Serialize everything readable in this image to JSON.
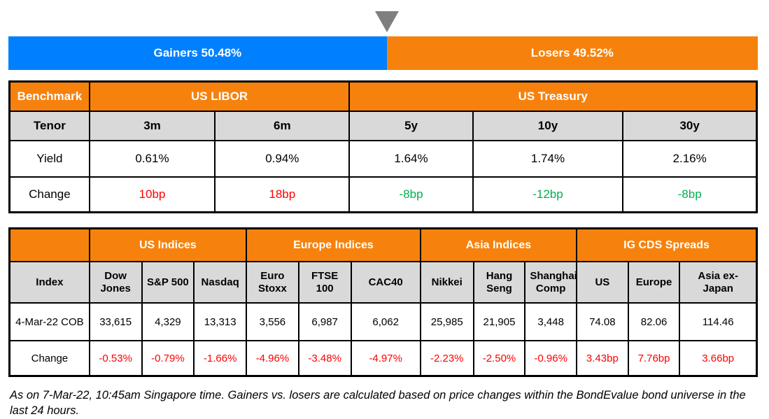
{
  "gauge": {
    "gainers": {
      "label": "Gainers 50.48%",
      "pct": 50.48,
      "color": "#0080fe"
    },
    "losers": {
      "label": "Losers 49.52%",
      "pct": 49.52,
      "color": "#f6820d"
    },
    "pointer_color": "#7f7f7f"
  },
  "benchmark_table": {
    "corner": "Benchmark",
    "groups": [
      {
        "label": "US LIBOR"
      },
      {
        "label": "US Treasury"
      }
    ],
    "tenor_row": {
      "label": "Tenor",
      "values": [
        "3m",
        "6m",
        "5y",
        "10y",
        "30y"
      ]
    },
    "yield_row": {
      "label": "Yield",
      "values": [
        "0.61%",
        "0.94%",
        "1.64%",
        "1.74%",
        "2.16%"
      ]
    },
    "change_row": {
      "label": "Change",
      "values": [
        {
          "text": "10bp",
          "color": "#ff0000"
        },
        {
          "text": "18bp",
          "color": "#ff0000"
        },
        {
          "text": "-8bp",
          "color": "#00b050"
        },
        {
          "text": "-12bp",
          "color": "#00b050"
        },
        {
          "text": "-8bp",
          "color": "#00b050"
        }
      ]
    }
  },
  "indices_table": {
    "corner": "",
    "groups": [
      {
        "label": "US Indices"
      },
      {
        "label": "Europe Indices"
      },
      {
        "label": "Asia Indices"
      },
      {
        "label": "IG CDS Spreads"
      }
    ],
    "header_row": {
      "label": "Index",
      "values": [
        "Dow Jones",
        "S&P 500",
        "Nasdaq",
        "Euro Stoxx",
        "FTSE 100",
        "CAC40",
        "Nikkei",
        "Hang Seng",
        "Shanghai Comp",
        "US",
        "Europe",
        "Asia ex-Japan"
      ]
    },
    "cob_row": {
      "label": "4-Mar-22 COB",
      "values": [
        "33,615",
        "4,329",
        "13,313",
        "3,556",
        "6,987",
        "6,062",
        "25,985",
        "21,905",
        "3,448",
        "74.08",
        "82.06",
        "114.46"
      ]
    },
    "change_row": {
      "label": "Change",
      "values": [
        {
          "text": "-0.53%",
          "color": "#ff0000"
        },
        {
          "text": "-0.79%",
          "color": "#ff0000"
        },
        {
          "text": "-1.66%",
          "color": "#ff0000"
        },
        {
          "text": "-4.96%",
          "color": "#ff0000"
        },
        {
          "text": "-3.48%",
          "color": "#ff0000"
        },
        {
          "text": "-4.97%",
          "color": "#ff0000"
        },
        {
          "text": "-2.23%",
          "color": "#ff0000"
        },
        {
          "text": "-2.50%",
          "color": "#ff0000"
        },
        {
          "text": "-0.96%",
          "color": "#ff0000"
        },
        {
          "text": "3.43bp",
          "color": "#ff0000"
        },
        {
          "text": "7.76bp",
          "color": "#ff0000"
        },
        {
          "text": "3.66bp",
          "color": "#ff0000"
        }
      ]
    }
  },
  "footnote": "As on 7-Mar-22, 10:45am Singapore time. Gainers vs. losers are calculated based on price changes within the BondEvalue bond universe in the last 24 hours.",
  "chart_data": [
    {
      "type": "bar",
      "title": "Gainers vs Losers (% of BondEvalue bond universe, last 24 hours)",
      "categories": [
        "Gainers",
        "Losers"
      ],
      "values": [
        50.48,
        49.52
      ],
      "layout": "horizontal-stacked-100pct",
      "colors": [
        "#0080fe",
        "#f6820d"
      ],
      "annotation": "gray down-triangle pointer at the gainers/losers split"
    },
    {
      "type": "table",
      "title": "Benchmark",
      "column_groups": [
        {
          "label": "US LIBOR",
          "columns": [
            "3m",
            "6m"
          ]
        },
        {
          "label": "US Treasury",
          "columns": [
            "5y",
            "10y",
            "30y"
          ]
        }
      ],
      "columns": [
        "Tenor",
        "3m",
        "6m",
        "5y",
        "10y",
        "30y"
      ],
      "rows": [
        [
          "Yield",
          "0.61%",
          "0.94%",
          "1.64%",
          "1.74%",
          "2.16%"
        ],
        [
          "Change",
          "10bp",
          "18bp",
          "-8bp",
          "-12bp",
          "-8bp"
        ]
      ]
    },
    {
      "type": "table",
      "title": "Indices and IG CDS Spreads",
      "column_groups": [
        {
          "label": "US Indices",
          "columns": [
            "Dow Jones",
            "S&P 500",
            "Nasdaq"
          ]
        },
        {
          "label": "Europe Indices",
          "columns": [
            "Euro Stoxx",
            "FTSE 100",
            "CAC40"
          ]
        },
        {
          "label": "Asia Indices",
          "columns": [
            "Nikkei",
            "Hang Seng",
            "Shanghai Comp"
          ]
        },
        {
          "label": "IG CDS Spreads",
          "columns": [
            "US",
            "Europe",
            "Asia ex-Japan"
          ]
        }
      ],
      "columns": [
        "Index",
        "Dow Jones",
        "S&P 500",
        "Nasdaq",
        "Euro Stoxx",
        "FTSE 100",
        "CAC40",
        "Nikkei",
        "Hang Seng",
        "Shanghai Comp",
        "US",
        "Europe",
        "Asia ex-Japan"
      ],
      "rows": [
        [
          "4-Mar-22 COB",
          "33,615",
          "4,329",
          "13,313",
          "3,556",
          "6,987",
          "6,062",
          "25,985",
          "21,905",
          "3,448",
          "74.08",
          "82.06",
          "114.46"
        ],
        [
          "Change",
          "-0.53%",
          "-0.79%",
          "-1.66%",
          "-4.96%",
          "-3.48%",
          "-4.97%",
          "-2.23%",
          "-2.50%",
          "-0.96%",
          "3.43bp",
          "7.76bp",
          "3.66bp"
        ]
      ]
    }
  ]
}
